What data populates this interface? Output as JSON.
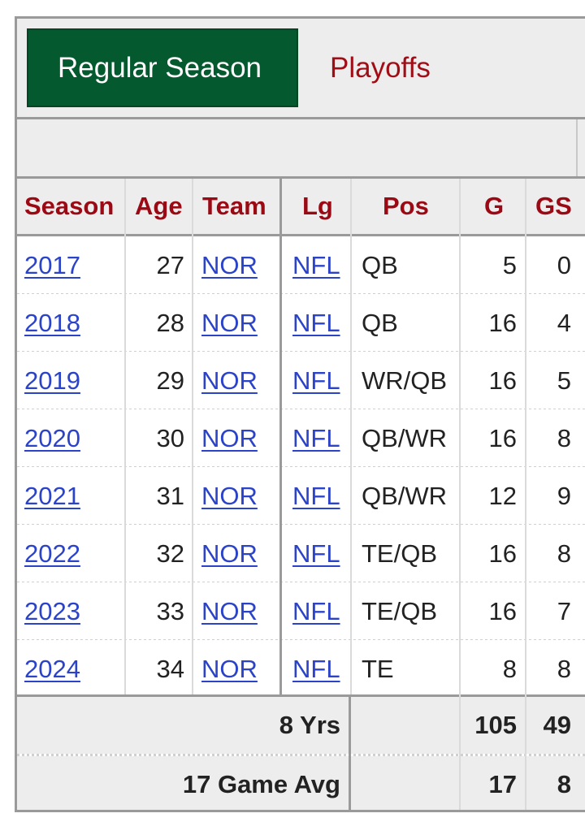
{
  "tabs": {
    "regular_season": "Regular Season",
    "playoffs": "Playoffs"
  },
  "columns": [
    "Season",
    "Age",
    "Team",
    "Lg",
    "Pos",
    "G",
    "GS"
  ],
  "rows": [
    {
      "season": "2017",
      "age": "27",
      "team": "NOR",
      "lg": "NFL",
      "pos": "QB",
      "g": "5",
      "gs": "0"
    },
    {
      "season": "2018",
      "age": "28",
      "team": "NOR",
      "lg": "NFL",
      "pos": "QB",
      "g": "16",
      "gs": "4"
    },
    {
      "season": "2019",
      "age": "29",
      "team": "NOR",
      "lg": "NFL",
      "pos": "WR/QB",
      "g": "16",
      "gs": "5"
    },
    {
      "season": "2020",
      "age": "30",
      "team": "NOR",
      "lg": "NFL",
      "pos": "QB/WR",
      "g": "16",
      "gs": "8"
    },
    {
      "season": "2021",
      "age": "31",
      "team": "NOR",
      "lg": "NFL",
      "pos": "QB/WR",
      "g": "12",
      "gs": "9"
    },
    {
      "season": "2022",
      "age": "32",
      "team": "NOR",
      "lg": "NFL",
      "pos": "TE/QB",
      "g": "16",
      "gs": "8"
    },
    {
      "season": "2023",
      "age": "33",
      "team": "NOR",
      "lg": "NFL",
      "pos": "TE/QB",
      "g": "16",
      "gs": "7"
    },
    {
      "season": "2024",
      "age": "34",
      "team": "NOR",
      "lg": "NFL",
      "pos": "TE",
      "g": "8",
      "gs": "8"
    }
  ],
  "footer": [
    {
      "label": "8 Yrs",
      "g": "105",
      "gs": "49"
    },
    {
      "label": "17 Game Avg",
      "g": "17",
      "gs": "8"
    }
  ],
  "colors": {
    "active_tab_bg": "#04592e",
    "header_text": "#9b0a14",
    "link": "#2b43c9",
    "inactive_tab_text": "#a10d16"
  }
}
